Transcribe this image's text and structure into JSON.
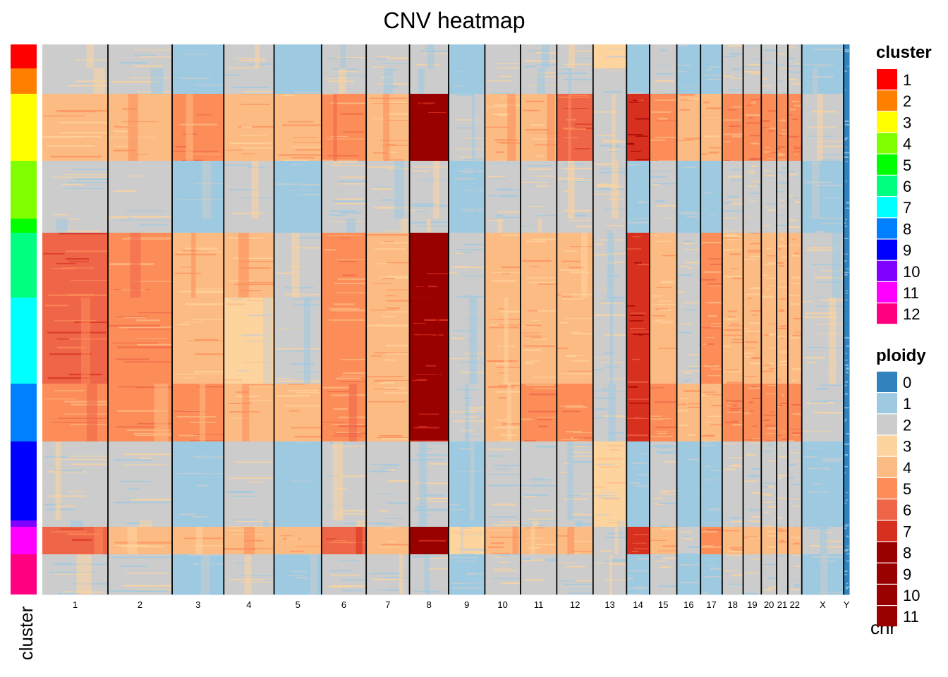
{
  "chart_data": {
    "type": "heatmap",
    "title": "CNV heatmap",
    "cluster_axis_label": "cluster",
    "chr_axis_label": "chr",
    "chromosomes": [
      "1",
      "2",
      "3",
      "4",
      "5",
      "6",
      "7",
      "8",
      "9",
      "10",
      "11",
      "12",
      "13",
      "14",
      "15",
      "16",
      "17",
      "18",
      "19",
      "20",
      "21",
      "22",
      "X",
      "Y"
    ],
    "chromosome_widths": [
      94,
      92,
      74,
      72,
      68,
      64,
      62,
      56,
      52,
      51,
      52,
      52,
      48,
      33,
      39,
      34,
      31,
      30,
      26,
      22,
      16,
      20,
      60,
      8
    ],
    "clusters": [
      {
        "id": "1",
        "size": 34,
        "color": "#FF0000"
      },
      {
        "id": "2",
        "size": 36,
        "color": "#FF8000"
      },
      {
        "id": "3",
        "size": 95,
        "color": "#FFFF00"
      },
      {
        "id": "4",
        "size": 82,
        "color": "#80FF00"
      },
      {
        "id": "5",
        "size": 20,
        "color": "#00FF00"
      },
      {
        "id": "6",
        "size": 92,
        "color": "#00FF80"
      },
      {
        "id": "7",
        "size": 122,
        "color": "#00FFFF"
      },
      {
        "id": "8",
        "size": 82,
        "color": "#0080FF"
      },
      {
        "id": "9",
        "size": 112,
        "color": "#0000FF"
      },
      {
        "id": "10",
        "size": 9,
        "color": "#8000FF"
      },
      {
        "id": "11",
        "size": 39,
        "color": "#FF00FF"
      },
      {
        "id": "12",
        "size": 57,
        "color": "#FF0080"
      }
    ],
    "ploidy_levels": [
      {
        "level": "0",
        "color": "#3182BD"
      },
      {
        "level": "1",
        "color": "#9ECAE1"
      },
      {
        "level": "2",
        "color": "#CCCCCC"
      },
      {
        "level": "3",
        "color": "#FDD49E"
      },
      {
        "level": "4",
        "color": "#FDBB84"
      },
      {
        "level": "5",
        "color": "#FC8D59"
      },
      {
        "level": "6",
        "color": "#EF6548"
      },
      {
        "level": "7",
        "color": "#D7301F"
      },
      {
        "level": "8",
        "color": "#990000"
      },
      {
        "level": "9",
        "color": "#990000"
      },
      {
        "level": "10",
        "color": "#990000"
      },
      {
        "level": "11",
        "color": "#990000"
      }
    ],
    "cluster_profiles": {
      "1": [
        2,
        2,
        1,
        2,
        1,
        2,
        2,
        2,
        1,
        2,
        2,
        2,
        3,
        1,
        2,
        1,
        1,
        2,
        2,
        2,
        2,
        2,
        1,
        0
      ],
      "2": [
        2,
        2,
        1,
        2,
        1,
        2,
        2,
        2,
        1,
        2,
        2,
        2,
        2,
        1,
        2,
        1,
        1,
        2,
        2,
        2,
        2,
        2,
        1,
        0
      ],
      "3": [
        4,
        4,
        5,
        4,
        4,
        5,
        4,
        8,
        2,
        4,
        4,
        6,
        2,
        7,
        5,
        4,
        4,
        5,
        5,
        5,
        5,
        5,
        2,
        0
      ],
      "4": [
        2,
        2,
        1,
        2,
        1,
        2,
        2,
        2,
        1,
        2,
        2,
        2,
        2,
        1,
        2,
        1,
        1,
        2,
        2,
        2,
        2,
        2,
        1,
        0
      ],
      "5": [
        2,
        2,
        1,
        2,
        1,
        2,
        2,
        2,
        1,
        2,
        2,
        2,
        2,
        1,
        2,
        1,
        1,
        2,
        2,
        2,
        2,
        2,
        1,
        0
      ],
      "6": [
        6,
        5,
        4,
        4,
        2,
        5,
        4,
        8,
        2,
        4,
        4,
        4,
        2,
        7,
        4,
        2,
        5,
        4,
        4,
        4,
        4,
        4,
        2,
        0
      ],
      "7": [
        6,
        5,
        4,
        3,
        2,
        5,
        4,
        8,
        2,
        4,
        4,
        4,
        2,
        7,
        4,
        2,
        5,
        4,
        4,
        4,
        4,
        4,
        2,
        0
      ],
      "8": [
        5,
        5,
        5,
        4,
        4,
        5,
        4,
        8,
        2,
        4,
        5,
        5,
        2,
        7,
        5,
        4,
        4,
        5,
        5,
        5,
        5,
        5,
        2,
        0
      ],
      "9": [
        2,
        2,
        1,
        2,
        1,
        2,
        2,
        2,
        1,
        2,
        2,
        2,
        3,
        1,
        2,
        1,
        1,
        2,
        2,
        2,
        2,
        2,
        1,
        0
      ],
      "10": [
        2,
        2,
        1,
        2,
        1,
        2,
        2,
        2,
        1,
        2,
        2,
        2,
        3,
        1,
        2,
        1,
        1,
        2,
        2,
        2,
        2,
        2,
        1,
        0
      ],
      "11": [
        6,
        4,
        4,
        4,
        4,
        6,
        4,
        8,
        3,
        4,
        4,
        4,
        2,
        7,
        4,
        2,
        5,
        4,
        4,
        4,
        4,
        4,
        2,
        0
      ],
      "12": [
        2,
        2,
        1,
        2,
        1,
        2,
        2,
        2,
        1,
        2,
        2,
        2,
        2,
        1,
        2,
        1,
        1,
        2,
        2,
        2,
        2,
        2,
        1,
        0
      ]
    }
  }
}
